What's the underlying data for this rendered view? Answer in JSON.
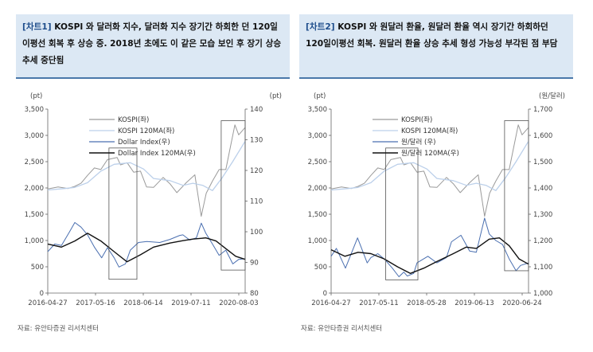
{
  "chart_data": [
    {
      "type": "line",
      "tag": "[차트1]",
      "title": "KOSPI 와 달러화 지수, 달러화 지수 장기간 하회한 던 120일 이평선 회복 후 상승 중. 2018년 초에도 이 같은 모습 보인 후 장기 상승 추세 중단됨",
      "source": "자료: 유안타증권 리서치센터",
      "left_unit": "(pt)",
      "right_unit": "(pt)",
      "ylim_left": [
        0,
        3500
      ],
      "ylim_right": [
        80,
        140
      ],
      "left_ticks": [
        "0",
        "500",
        "1,000",
        "1,500",
        "2,000",
        "2,500",
        "3,000",
        "3,500"
      ],
      "right_ticks": [
        "80",
        "90",
        "100",
        "110",
        "120",
        "130",
        "140"
      ],
      "x_labels": [
        "2016-04-27",
        "2017-05-16",
        "2018-06-14",
        "2019-07-11",
        "2020-08-03"
      ],
      "x_range": [
        "2016-04-27",
        "2021-04-30"
      ],
      "legend_position": "top-left",
      "highlight_boxes": [
        {
          "from": "2017-11-15",
          "to": "2018-08-01"
        },
        {
          "from": "2020-09-20",
          "to": "2021-04-30"
        }
      ],
      "series": [
        {
          "name": "KOSPI(좌)",
          "axis": "left",
          "color": "#9a9a9a",
          "points": [
            [
              "2016-04-27",
              1980
            ],
            [
              "2016-08-01",
              2020
            ],
            [
              "2016-11-01",
              1990
            ],
            [
              "2017-01-02",
              2030
            ],
            [
              "2017-03-01",
              2090
            ],
            [
              "2017-05-01",
              2240
            ],
            [
              "2017-07-03",
              2380
            ],
            [
              "2017-09-01",
              2350
            ],
            [
              "2017-11-01",
              2540
            ],
            [
              "2018-01-29",
              2580
            ],
            [
              "2018-03-02",
              2440
            ],
            [
              "2018-05-02",
              2480
            ],
            [
              "2018-07-02",
              2300
            ],
            [
              "2018-09-03",
              2320
            ],
            [
              "2018-10-29",
              2020
            ],
            [
              "2019-01-02",
              2010
            ],
            [
              "2019-04-01",
              2200
            ],
            [
              "2019-06-03",
              2080
            ],
            [
              "2019-08-06",
              1910
            ],
            [
              "2019-11-01",
              2100
            ],
            [
              "2020-01-20",
              2250
            ],
            [
              "2020-03-19",
              1460
            ],
            [
              "2020-05-04",
              1900
            ],
            [
              "2020-07-01",
              2130
            ],
            [
              "2020-09-01",
              2350
            ],
            [
              "2020-11-02",
              2350
            ],
            [
              "2020-12-01",
              2650
            ],
            [
              "2021-01-25",
              3200
            ],
            [
              "2021-03-01",
              3010
            ],
            [
              "2021-04-30",
              3150
            ]
          ]
        },
        {
          "name": "KOSPI 120MA(좌)",
          "axis": "left",
          "color": "#bcd0ea",
          "points": [
            [
              "2016-04-27",
              1960
            ],
            [
              "2016-10-04",
              1990
            ],
            [
              "2017-01-02",
              2010
            ],
            [
              "2017-05-01",
              2100
            ],
            [
              "2017-09-01",
              2320
            ],
            [
              "2018-01-02",
              2450
            ],
            [
              "2018-06-01",
              2480
            ],
            [
              "2018-10-01",
              2360
            ],
            [
              "2019-01-02",
              2180
            ],
            [
              "2019-06-03",
              2140
            ],
            [
              "2019-10-01",
              2050
            ],
            [
              "2020-01-02",
              2090
            ],
            [
              "2020-04-01",
              2050
            ],
            [
              "2020-07-01",
              1950
            ],
            [
              "2020-10-01",
              2200
            ],
            [
              "2021-01-04",
              2500
            ],
            [
              "2021-04-30",
              2890
            ]
          ]
        },
        {
          "name": "Dollar Index(우)",
          "axis": "right",
          "color": "#4a6fb0",
          "points": [
            [
              "2016-04-27",
              93.5
            ],
            [
              "2016-07-01",
              96
            ],
            [
              "2016-09-01",
              95.5
            ],
            [
              "2016-11-15",
              100
            ],
            [
              "2017-01-03",
              103
            ],
            [
              "2017-03-01",
              101.5
            ],
            [
              "2017-05-01",
              99
            ],
            [
              "2017-07-03",
              95
            ],
            [
              "2017-09-08",
              91.5
            ],
            [
              "2017-11-01",
              94.8
            ],
            [
              "2018-01-02",
              91.5
            ],
            [
              "2018-02-15",
              88.5
            ],
            [
              "2018-04-16",
              89.5
            ],
            [
              "2018-06-01",
              94
            ],
            [
              "2018-08-15",
              96.5
            ],
            [
              "2018-11-01",
              96.8
            ],
            [
              "2019-03-01",
              96.5
            ],
            [
              "2019-06-03",
              97.5
            ],
            [
              "2019-09-02",
              98.8
            ],
            [
              "2019-10-01",
              99
            ],
            [
              "2019-12-02",
              97.3
            ],
            [
              "2020-02-03",
              98
            ],
            [
              "2020-03-20",
              102.8
            ],
            [
              "2020-05-01",
              99.5
            ],
            [
              "2020-07-01",
              96
            ],
            [
              "2020-09-01",
              92.3
            ],
            [
              "2020-11-02",
              94
            ],
            [
              "2021-01-06",
              89.5
            ],
            [
              "2021-03-01",
              91
            ],
            [
              "2021-04-30",
              91.2
            ]
          ]
        },
        {
          "name": "Dollar Index 120MA(우)",
          "axis": "right",
          "color": "#111111",
          "points": [
            [
              "2016-04-27",
              96
            ],
            [
              "2016-09-01",
              95
            ],
            [
              "2017-01-03",
              97
            ],
            [
              "2017-05-01",
              99.5
            ],
            [
              "2017-09-01",
              97
            ],
            [
              "2018-01-02",
              93.5
            ],
            [
              "2018-05-01",
              90.2
            ],
            [
              "2018-09-03",
              92.5
            ],
            [
              "2019-01-02",
              95
            ],
            [
              "2019-06-03",
              96.3
            ],
            [
              "2019-10-01",
              97.1
            ],
            [
              "2020-01-02",
              97.6
            ],
            [
              "2020-05-01",
              98
            ],
            [
              "2020-08-03",
              97
            ],
            [
              "2020-11-02",
              94.5
            ],
            [
              "2021-02-01",
              92
            ],
            [
              "2021-04-30",
              91
            ]
          ]
        }
      ]
    },
    {
      "type": "line",
      "tag": "[차트2]",
      "title": "KOSPI 와 원달러 환율, 원달러 환율 역시 장기간 하회하던 120일이평선 회복. 원달러 환율 상승 추세 형성 가능성 부각된 점 부담",
      "source": "자료: 유안타증권 리서치센터",
      "left_unit": "(pt)",
      "right_unit": "(원/달러)",
      "ylim_left": [
        0,
        3500
      ],
      "ylim_right": [
        1000,
        1700
      ],
      "left_ticks": [
        "0",
        "500",
        "1,000",
        "1,500",
        "2,000",
        "2,500",
        "3,000",
        "3,500"
      ],
      "right_ticks": [
        "1,000",
        "1,100",
        "1,200",
        "1,300",
        "1,400",
        "1,500",
        "1,600",
        "1,700"
      ],
      "x_labels": [
        "2016-04-27",
        "2017-05-11",
        "2018-05-28",
        "2019-06-13",
        "2020-06-24"
      ],
      "x_range": [
        "2016-04-27",
        "2021-04-30"
      ],
      "legend_position": "top-left",
      "highlight_boxes": [
        {
          "from": "2017-09-15",
          "to": "2018-07-10"
        },
        {
          "from": "2020-09-20",
          "to": "2021-04-30"
        }
      ],
      "series": [
        {
          "name": "KOSPI(좌)",
          "axis": "left",
          "color": "#9a9a9a",
          "points": [
            [
              "2016-04-27",
              1980
            ],
            [
              "2016-08-01",
              2020
            ],
            [
              "2016-11-01",
              1990
            ],
            [
              "2017-01-02",
              2030
            ],
            [
              "2017-03-01",
              2090
            ],
            [
              "2017-05-01",
              2240
            ],
            [
              "2017-07-03",
              2380
            ],
            [
              "2017-09-01",
              2350
            ],
            [
              "2017-11-01",
              2540
            ],
            [
              "2018-01-29",
              2580
            ],
            [
              "2018-03-02",
              2440
            ],
            [
              "2018-05-02",
              2480
            ],
            [
              "2018-07-02",
              2300
            ],
            [
              "2018-09-03",
              2320
            ],
            [
              "2018-10-29",
              2020
            ],
            [
              "2019-01-02",
              2010
            ],
            [
              "2019-04-01",
              2200
            ],
            [
              "2019-06-03",
              2080
            ],
            [
              "2019-08-06",
              1910
            ],
            [
              "2019-11-01",
              2100
            ],
            [
              "2020-01-20",
              2250
            ],
            [
              "2020-03-19",
              1460
            ],
            [
              "2020-05-04",
              1900
            ],
            [
              "2020-07-01",
              2130
            ],
            [
              "2020-09-01",
              2350
            ],
            [
              "2020-11-02",
              2350
            ],
            [
              "2020-12-01",
              2650
            ],
            [
              "2021-01-25",
              3200
            ],
            [
              "2021-03-01",
              3010
            ],
            [
              "2021-04-30",
              3150
            ]
          ]
        },
        {
          "name": "KOSPI 120MA(좌)",
          "axis": "left",
          "color": "#bcd0ea",
          "points": [
            [
              "2016-04-27",
              1960
            ],
            [
              "2016-10-04",
              1990
            ],
            [
              "2017-01-02",
              2010
            ],
            [
              "2017-05-01",
              2100
            ],
            [
              "2017-09-01",
              2320
            ],
            [
              "2018-01-02",
              2450
            ],
            [
              "2018-06-01",
              2480
            ],
            [
              "2018-10-01",
              2360
            ],
            [
              "2019-01-02",
              2180
            ],
            [
              "2019-06-03",
              2140
            ],
            [
              "2019-10-01",
              2050
            ],
            [
              "2020-01-02",
              2090
            ],
            [
              "2020-04-01",
              2050
            ],
            [
              "2020-07-01",
              1950
            ],
            [
              "2020-10-01",
              2200
            ],
            [
              "2021-01-04",
              2500
            ],
            [
              "2021-04-30",
              2890
            ]
          ]
        },
        {
          "name": "원/달러 (우)",
          "axis": "right",
          "color": "#4a6fb0",
          "points": [
            [
              "2016-04-27",
              1140
            ],
            [
              "2016-06-15",
              1170
            ],
            [
              "2016-09-07",
              1095
            ],
            [
              "2016-12-28",
              1210
            ],
            [
              "2017-03-27",
              1115
            ],
            [
              "2017-05-01",
              1135
            ],
            [
              "2017-07-03",
              1150
            ],
            [
              "2017-09-01",
              1130
            ],
            [
              "2017-11-15",
              1095
            ],
            [
              "2018-01-15",
              1062
            ],
            [
              "2018-03-01",
              1080
            ],
            [
              "2018-04-02",
              1065
            ],
            [
              "2018-06-01",
              1075
            ],
            [
              "2018-07-02",
              1115
            ],
            [
              "2018-10-11",
              1140
            ],
            [
              "2019-01-02",
              1115
            ],
            [
              "2019-04-01",
              1135
            ],
            [
              "2019-05-17",
              1195
            ],
            [
              "2019-08-13",
              1220
            ],
            [
              "2019-11-01",
              1160
            ],
            [
              "2020-01-02",
              1155
            ],
            [
              "2020-03-19",
              1285
            ],
            [
              "2020-05-01",
              1225
            ],
            [
              "2020-07-01",
              1200
            ],
            [
              "2020-09-01",
              1185
            ],
            [
              "2020-11-02",
              1130
            ],
            [
              "2021-01-04",
              1085
            ],
            [
              "2021-02-15",
              1105
            ],
            [
              "2021-04-30",
              1115
            ]
          ]
        },
        {
          "name": "원/달러 120MA(우)",
          "axis": "right",
          "color": "#111111",
          "points": [
            [
              "2016-04-27",
              1165
            ],
            [
              "2016-09-01",
              1140
            ],
            [
              "2017-01-02",
              1155
            ],
            [
              "2017-05-01",
              1150
            ],
            [
              "2017-09-01",
              1130
            ],
            [
              "2018-01-02",
              1100
            ],
            [
              "2018-05-01",
              1075
            ],
            [
              "2018-09-03",
              1095
            ],
            [
              "2019-01-02",
              1120
            ],
            [
              "2019-06-03",
              1150
            ],
            [
              "2019-10-01",
              1175
            ],
            [
              "2020-01-02",
              1170
            ],
            [
              "2020-05-01",
              1205
            ],
            [
              "2020-08-03",
              1210
            ],
            [
              "2020-11-02",
              1180
            ],
            [
              "2021-02-01",
              1130
            ],
            [
              "2021-04-30",
              1110
            ]
          ]
        }
      ]
    }
  ]
}
